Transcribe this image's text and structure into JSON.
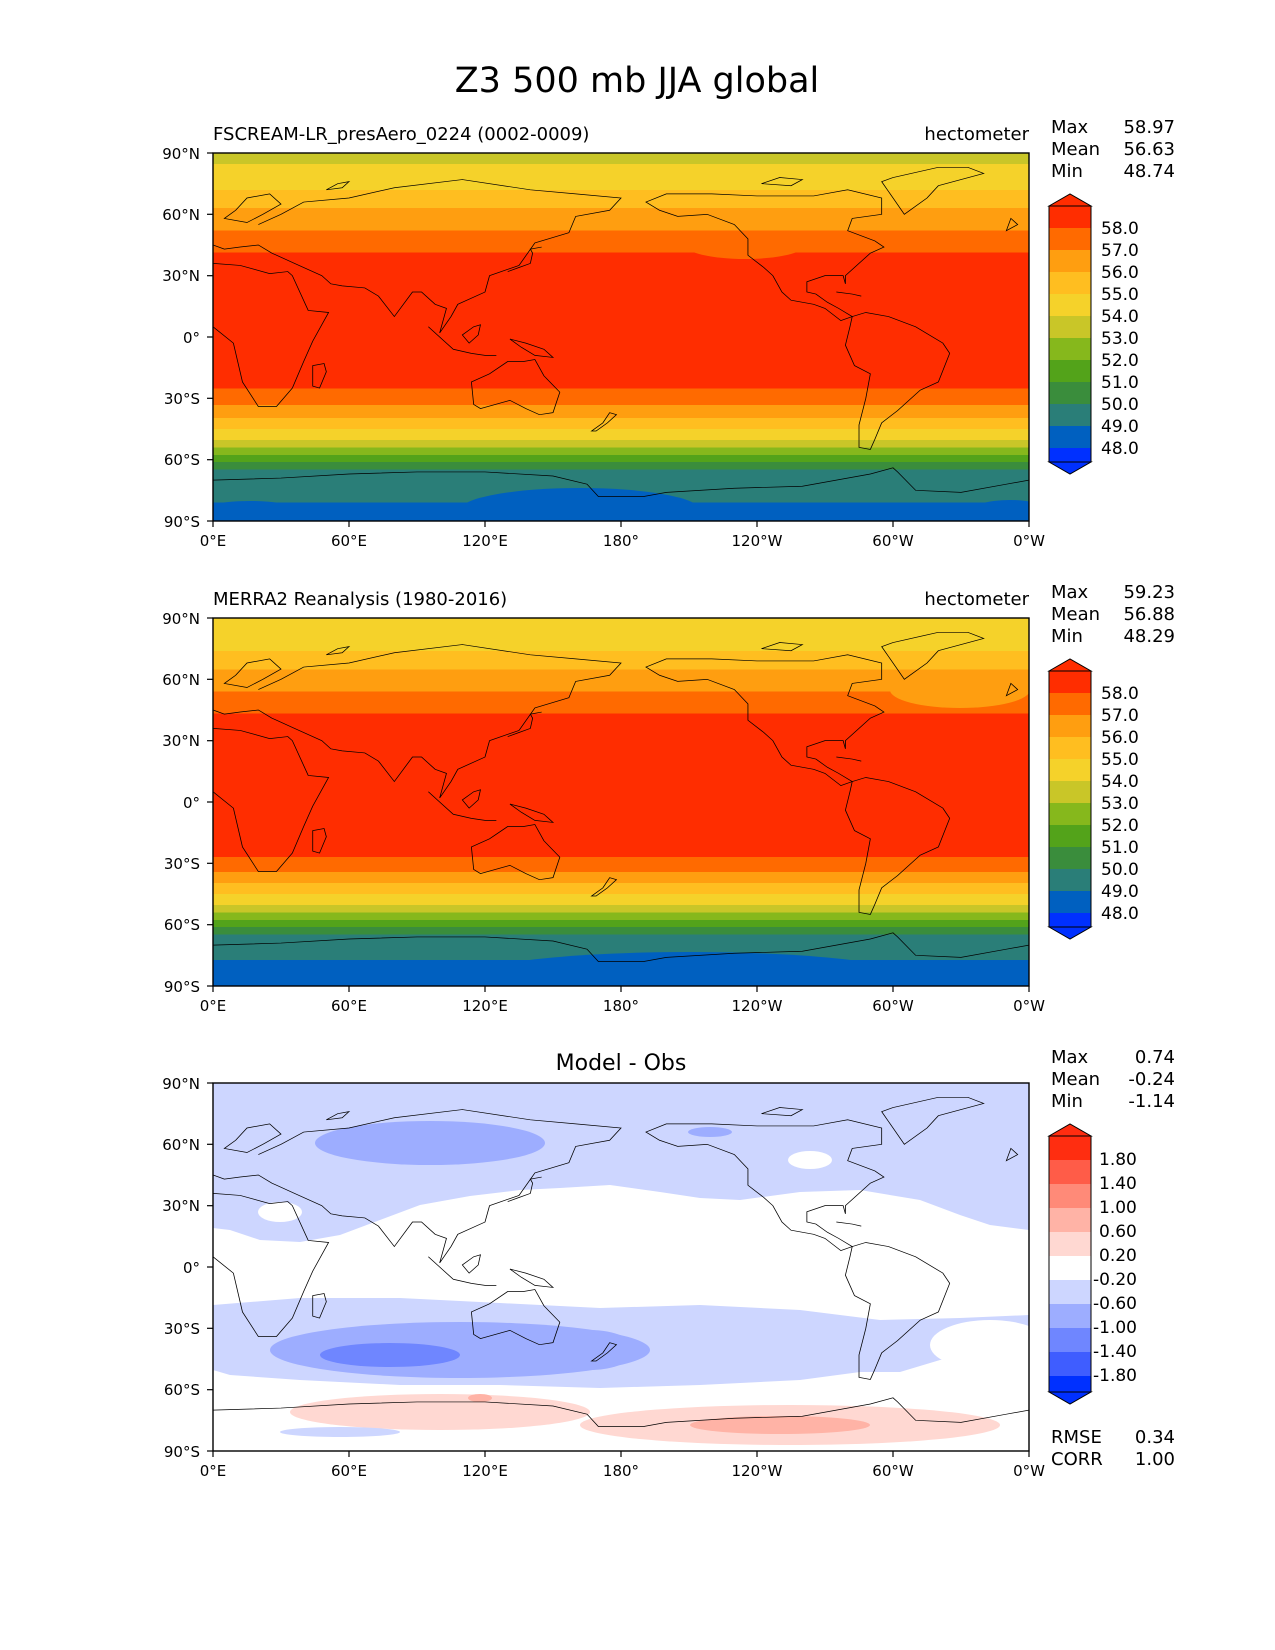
{
  "title": "Z3 500 mb JJA global",
  "x_ticks": [
    "0°E",
    "60°E",
    "120°E",
    "180°",
    "120°W",
    "60°W",
    "0°W"
  ],
  "y_ticks": [
    "90°N",
    "60°N",
    "30°N",
    "0°",
    "30°S",
    "60°S",
    "90°S"
  ],
  "stat_labels": {
    "max": "Max",
    "mean": "Mean",
    "min": "Min"
  },
  "panels": [
    {
      "left_title": "FSCREAM-LR_presAero_0224 (0002-0009)",
      "right_title": "hectometer",
      "center_title": "",
      "stats": {
        "max": "58.97",
        "mean": "56.63",
        "min": "48.74"
      },
      "colorbar": {
        "ticks": [
          "58.0",
          "57.0",
          "56.0",
          "55.0",
          "54.0",
          "53.0",
          "52.0",
          "51.0",
          "50.0",
          "49.0",
          "48.0"
        ],
        "colors": [
          "#ff2d00",
          "#ff6a00",
          "#ff9e10",
          "#ffbe20",
          "#f5d22a",
          "#c9c628",
          "#86b81c",
          "#53a31a",
          "#3a8d3c",
          "#2a7e78",
          "#0060c0",
          "#0030ff"
        ]
      }
    },
    {
      "left_title": "MERRA2 Reanalysis (1980-2016)",
      "right_title": "hectometer",
      "center_title": "",
      "stats": {
        "max": "59.23",
        "mean": "56.88",
        "min": "48.29"
      },
      "colorbar": {
        "ticks": [
          "58.0",
          "57.0",
          "56.0",
          "55.0",
          "54.0",
          "53.0",
          "52.0",
          "51.0",
          "50.0",
          "49.0",
          "48.0"
        ],
        "colors": [
          "#ff2d00",
          "#ff6a00",
          "#ff9e10",
          "#ffbe20",
          "#f5d22a",
          "#c9c628",
          "#86b81c",
          "#53a31a",
          "#3a8d3c",
          "#2a7e78",
          "#0060c0",
          "#0030ff"
        ]
      }
    },
    {
      "left_title": "",
      "right_title": "",
      "center_title": "Model - Obs",
      "stats": {
        "max": "0.74",
        "mean": "-0.24",
        "min": "-1.14"
      },
      "extra_stats": {
        "rmse_label": "RMSE",
        "rmse": "0.34",
        "corr_label": "CORR",
        "corr": "1.00"
      },
      "colorbar": {
        "ticks": [
          "1.80",
          "1.40",
          "1.00",
          "0.60",
          "0.20",
          "-0.20",
          "-0.60",
          "-1.00",
          "-1.40",
          "-1.80"
        ],
        "colors": [
          "#ff2d10",
          "#ff5c48",
          "#ff8a78",
          "#ffb3a6",
          "#ffd8d2",
          "#ffffff",
          "#cdd6ff",
          "#9dadff",
          "#6f86ff",
          "#3f5dff",
          "#0030ff"
        ]
      }
    }
  ]
}
